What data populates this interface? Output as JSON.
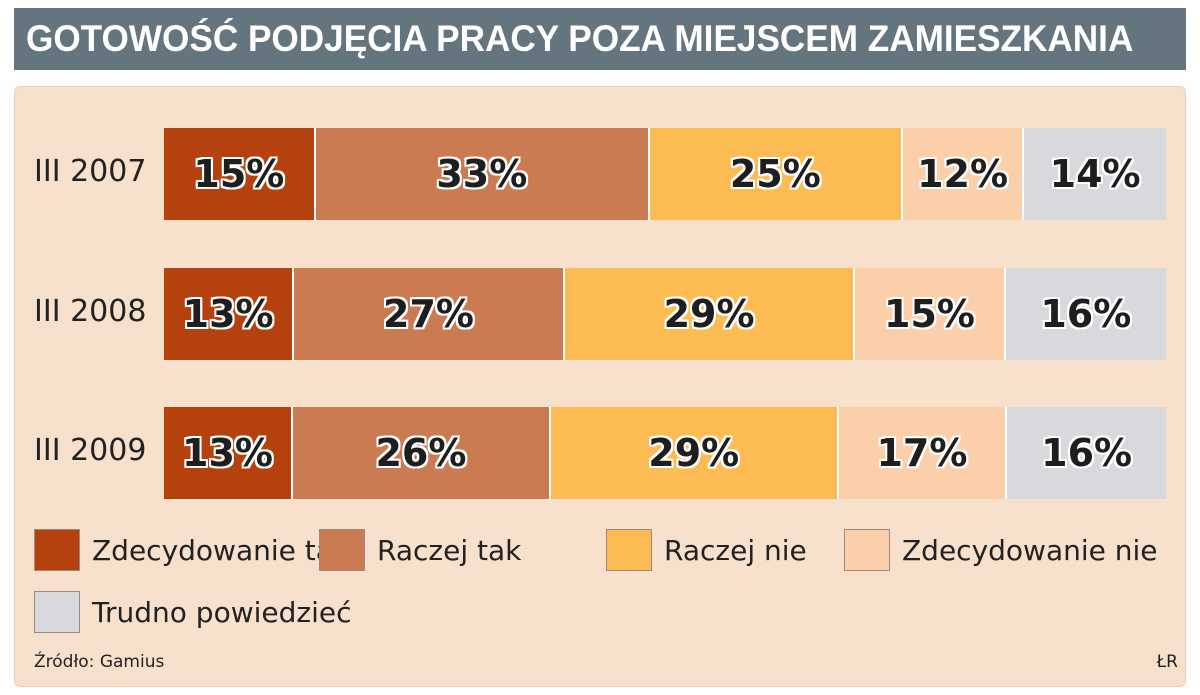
{
  "title": "GOTOWOŚĆ PODJĘCIA PRACY POZA MIEJSCEM ZAMIESZKANIA",
  "source": "Źródło: Gamius",
  "credit": "ŁR",
  "colors": {
    "title_bar": "#65757f",
    "panel": "#f8e1cc"
  },
  "chart_data": {
    "type": "bar",
    "orientation": "horizontal",
    "stacked": true,
    "stacked_to_100": true,
    "categories": [
      "III 2007",
      "III 2008",
      "III 2009"
    ],
    "series": [
      {
        "name": "Zdecydowanie tak",
        "color": "#b5420e",
        "values": [
          15,
          13,
          13
        ],
        "labels": [
          "15%",
          "13%",
          "13%"
        ]
      },
      {
        "name": "Raczej tak",
        "color": "#cb7b52",
        "values": [
          33,
          27,
          26
        ],
        "labels": [
          "33%",
          "27%",
          "26%"
        ]
      },
      {
        "name": "Raczej nie",
        "color": "#fcbc53",
        "values": [
          25,
          29,
          29
        ],
        "labels": [
          "25%",
          "29%",
          "29%"
        ]
      },
      {
        "name": "Zdecydowanie nie",
        "color": "#fbcfa9",
        "values": [
          12,
          15,
          17
        ],
        "labels": [
          "12%",
          "15%",
          "17%"
        ]
      },
      {
        "name": "Trudno powiedzieć",
        "color": "#d7d9dc",
        "values": [
          14,
          16,
          16
        ],
        "labels": [
          "14%",
          "16%",
          "16%"
        ]
      }
    ],
    "legend_position": "bottom",
    "grid": false
  }
}
